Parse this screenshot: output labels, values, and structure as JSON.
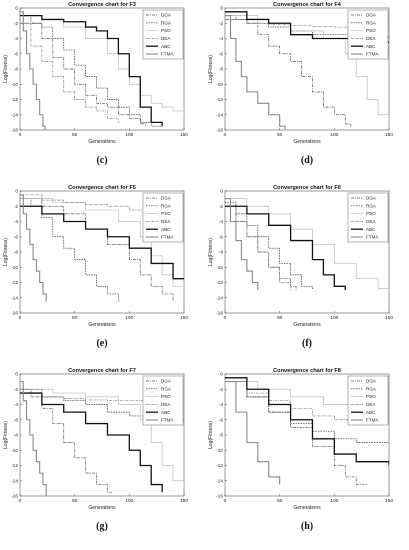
{
  "legend_labels": [
    "DGA",
    "RGA",
    "PSO",
    "DEA",
    "ABC",
    "FTMA"
  ],
  "series_styles": {
    "DGA": {
      "color": "#555555",
      "dash": "3 1 1 1",
      "width": 0.7
    },
    "RGA": {
      "color": "#333333",
      "dash": "1.5 1",
      "width": 0.7
    },
    "PSO": {
      "color": "#bbbbbb",
      "dash": "",
      "width": 0.7
    },
    "DEA": {
      "color": "#777777",
      "dash": "2.5 1 0.8 1",
      "width": 0.7
    },
    "ABC": {
      "color": "#111111",
      "dash": "",
      "width": 1.3
    },
    "FTMA": {
      "color": "#888888",
      "dash": "",
      "width": 1.1
    }
  },
  "chart_data": [
    {
      "type": "line",
      "title": "Convergence chart for F3",
      "caption": "(c)",
      "xlabel": "Generations",
      "ylabel": "Log(Fitness)",
      "xlim": [
        0,
        150
      ],
      "ylim": [
        -16,
        0
      ],
      "xticks": [
        0,
        50,
        100,
        150
      ],
      "yticks": [
        0,
        -2,
        -4,
        -6,
        -8,
        -10,
        -12,
        -14,
        -16
      ],
      "legend_position": "top-right",
      "series": [
        {
          "name": "DGA",
          "x": [
            0,
            20,
            30,
            40,
            50,
            60,
            70,
            80,
            90,
            100,
            110,
            115
          ],
          "y": [
            -2,
            -4,
            -6.5,
            -8,
            -10,
            -11.5,
            -12.5,
            -13,
            -14,
            -14.5,
            -15.2,
            -15.5
          ]
        },
        {
          "name": "RGA",
          "x": [
            0,
            10,
            20,
            30,
            40,
            50,
            60,
            70,
            80,
            90,
            100,
            110,
            120,
            130
          ],
          "y": [
            -1,
            -2,
            -2.5,
            -4,
            -5.5,
            -7.5,
            -9,
            -10.5,
            -12,
            -13,
            -14,
            -15,
            -15.5,
            -15.5
          ]
        },
        {
          "name": "PSO",
          "x": [
            0,
            20,
            40,
            60,
            80,
            90,
            100,
            110,
            120,
            130,
            140,
            150
          ],
          "y": [
            -1,
            -1.5,
            -2.5,
            -4,
            -6,
            -8,
            -10,
            -11.5,
            -12.5,
            -13,
            -13.5,
            -14
          ]
        },
        {
          "name": "DEA",
          "x": [
            0,
            10,
            20,
            30,
            40,
            50,
            60,
            70,
            80,
            90
          ],
          "y": [
            -2,
            -5,
            -7,
            -9,
            -11,
            -12,
            -13,
            -13.5,
            -14.5,
            -15
          ]
        },
        {
          "name": "ABC",
          "x": [
            0,
            20,
            40,
            60,
            70,
            80,
            90,
            100,
            110,
            120,
            130
          ],
          "y": [
            -1,
            -1.5,
            -1.8,
            -2.5,
            -3,
            -4,
            -6,
            -9,
            -13,
            -15,
            -15.5
          ]
        },
        {
          "name": "FTMA",
          "x": [
            0,
            3,
            6,
            9,
            12,
            15,
            18,
            21,
            23
          ],
          "y": [
            -0.5,
            -3,
            -6,
            -8,
            -10,
            -12,
            -14,
            -15.5,
            -16
          ]
        }
      ]
    },
    {
      "type": "line",
      "title": "Convergence chart for F4",
      "caption": "(d)",
      "xlabel": "Generations",
      "ylabel": "Log(Fitness)",
      "xlim": [
        0,
        150
      ],
      "ylim": [
        -16,
        0
      ],
      "xticks": [
        0,
        50,
        100,
        150
      ],
      "yticks": [
        0,
        -2,
        -4,
        -6,
        -8,
        -10,
        -12,
        -14,
        -16
      ],
      "legend_position": "top-right",
      "series": [
        {
          "name": "DGA",
          "x": [
            0,
            10,
            20,
            30,
            40,
            50,
            60,
            70,
            80,
            90,
            100,
            110,
            115
          ],
          "y": [
            -1,
            -1.5,
            -2,
            -3.5,
            -5,
            -6,
            -7,
            -9,
            -11,
            -13,
            -14,
            -15.2,
            -15.5
          ]
        },
        {
          "name": "RGA",
          "x": [
            0,
            20,
            40,
            60,
            80,
            100,
            120,
            140,
            150
          ],
          "y": [
            -1.5,
            -2,
            -2.5,
            -3,
            -3.5,
            -3.5,
            -3.8,
            -3.8,
            -4
          ]
        },
        {
          "name": "PSO",
          "x": [
            0,
            30,
            60,
            90,
            110,
            120,
            130,
            140,
            150
          ],
          "y": [
            -1,
            -2,
            -3,
            -4,
            -6,
            -9,
            -12,
            -14,
            -15
          ]
        },
        {
          "name": "DEA",
          "x": [
            0,
            20,
            40,
            60,
            80,
            100,
            120,
            150
          ],
          "y": [
            -1.5,
            -2,
            -2.2,
            -2.3,
            -2.4,
            -2.5,
            -2.5,
            -2.5
          ]
        },
        {
          "name": "ABC",
          "x": [
            0,
            20,
            40,
            60,
            80,
            100,
            120,
            150
          ],
          "y": [
            -0.5,
            -1.5,
            -2,
            -3.5,
            -4,
            -4,
            -4.5,
            -4.5
          ]
        },
        {
          "name": "FTMA",
          "x": [
            0,
            5,
            10,
            15,
            20,
            30,
            40,
            50,
            55
          ],
          "y": [
            -1,
            -4,
            -7,
            -9,
            -11,
            -12.5,
            -14,
            -15.5,
            -16
          ]
        }
      ]
    },
    {
      "type": "line",
      "title": "Convergence chart for F5",
      "caption": "(e)",
      "xlabel": "Generations",
      "ylabel": "Log(Fitness)",
      "xlim": [
        0,
        150
      ],
      "ylim": [
        -16,
        0
      ],
      "xticks": [
        0,
        50,
        100,
        150
      ],
      "yticks": [
        0,
        -2,
        -4,
        -6,
        -8,
        -10,
        -12,
        -14,
        -16
      ],
      "legend_position": "top-right",
      "series": [
        {
          "name": "DGA",
          "x": [
            0,
            20,
            40,
            60,
            80,
            100,
            110,
            120,
            130,
            140
          ],
          "y": [
            -1,
            -2,
            -3,
            -5,
            -7,
            -9,
            -11,
            -12.5,
            -13.5,
            -14.5
          ]
        },
        {
          "name": "RGA",
          "x": [
            0,
            10,
            20,
            30,
            40,
            50,
            60,
            70,
            80,
            90
          ],
          "y": [
            -1,
            -2,
            -3.5,
            -6,
            -7.5,
            -9,
            -11,
            -12.5,
            -13.5,
            -14.5
          ]
        },
        {
          "name": "PSO",
          "x": [
            0,
            30,
            60,
            90,
            110,
            120,
            130,
            140,
            150
          ],
          "y": [
            -1,
            -1.5,
            -2.5,
            -4,
            -6,
            -8.5,
            -11,
            -12.5,
            -13
          ]
        },
        {
          "name": "DEA",
          "x": [
            0,
            20,
            40,
            60,
            80,
            100,
            120,
            150
          ],
          "y": [
            -0.5,
            -1.2,
            -1.5,
            -1.8,
            -2,
            -2.5,
            -3,
            -3.5
          ]
        },
        {
          "name": "ABC",
          "x": [
            0,
            20,
            40,
            60,
            80,
            100,
            120,
            140,
            150
          ],
          "y": [
            -2,
            -3,
            -4,
            -5,
            -6,
            -7.5,
            -9.5,
            -11.5,
            -11.5
          ]
        },
        {
          "name": "FTMA",
          "x": [
            0,
            3,
            6,
            9,
            12,
            15,
            18,
            21,
            24
          ],
          "y": [
            -0.5,
            -3,
            -5,
            -7,
            -9,
            -10.5,
            -12,
            -13.5,
            -14.5
          ]
        }
      ]
    },
    {
      "type": "line",
      "title": "Convergence chart for F6",
      "caption": "(f)",
      "xlabel": "Generations",
      "ylabel": "Log(Fitness)",
      "xlim": [
        0,
        150
      ],
      "ylim": [
        -16,
        0
      ],
      "xticks": [
        0,
        50,
        100,
        150
      ],
      "yticks": [
        0,
        -2,
        -4,
        -6,
        -8,
        -10,
        -12,
        -14,
        -16
      ],
      "legend_position": "top-right",
      "series": [
        {
          "name": "DGA",
          "x": [
            0,
            10,
            20,
            30,
            40,
            50,
            60,
            65
          ],
          "y": [
            -2,
            -4,
            -6,
            -8,
            -10,
            -11.5,
            -12.5,
            -13
          ]
        },
        {
          "name": "RGA",
          "x": [
            0,
            10,
            20,
            30,
            40,
            50,
            60,
            70,
            80
          ],
          "y": [
            -1.5,
            -3,
            -4.5,
            -6,
            -7.5,
            -9.5,
            -11,
            -12.5,
            -13
          ]
        },
        {
          "name": "PSO",
          "x": [
            0,
            20,
            40,
            60,
            80,
            100,
            120,
            140,
            150
          ],
          "y": [
            -1,
            -2,
            -3,
            -5,
            -7,
            -9.5,
            -11.5,
            -12.8,
            -13
          ]
        },
        {
          "name": "DEA",
          "x": [
            0,
            10,
            20,
            30,
            40,
            50,
            60
          ],
          "y": [
            -2,
            -4,
            -6,
            -8,
            -10,
            -12,
            -13
          ]
        },
        {
          "name": "ABC",
          "x": [
            0,
            20,
            40,
            60,
            80,
            90,
            100,
            110
          ],
          "y": [
            -2,
            -3,
            -4.5,
            -6.5,
            -9,
            -11,
            -12.5,
            -13
          ]
        },
        {
          "name": "FTMA",
          "x": [
            0,
            5,
            10,
            15,
            20,
            25,
            30
          ],
          "y": [
            -1,
            -4,
            -6.5,
            -9,
            -10.5,
            -12,
            -13
          ]
        }
      ]
    },
    {
      "type": "line",
      "title": "Convergence chart for F7",
      "caption": "(g)",
      "xlabel": "Generations",
      "ylabel": "Log(Fitness)",
      "xlim": [
        0,
        150
      ],
      "ylim": [
        -16,
        0
      ],
      "xticks": [
        0,
        50,
        100,
        150
      ],
      "yticks": [
        0,
        -2,
        -4,
        -6,
        -8,
        -10,
        -12,
        -14,
        -16
      ],
      "legend_position": "top-right",
      "series": [
        {
          "name": "DGA",
          "x": [
            0,
            10,
            20,
            30,
            40,
            50,
            60,
            70,
            80,
            85
          ],
          "y": [
            -2,
            -3,
            -4.5,
            -6.5,
            -9,
            -11,
            -13,
            -14.5,
            -15.5,
            -15.5
          ]
        },
        {
          "name": "RGA",
          "x": [
            0,
            20,
            40,
            60,
            80,
            100,
            120,
            150
          ],
          "y": [
            -2.5,
            -3,
            -3.5,
            -4,
            -5,
            -5.5,
            -6,
            -6
          ]
        },
        {
          "name": "PSO",
          "x": [
            0,
            30,
            60,
            90,
            110,
            120,
            130,
            140,
            150
          ],
          "y": [
            -2,
            -2.5,
            -3,
            -4,
            -6,
            -9,
            -12,
            -14,
            -15
          ]
        },
        {
          "name": "DEA",
          "x": [
            0,
            20,
            40,
            60,
            80,
            100,
            120,
            150
          ],
          "y": [
            -2,
            -3,
            -3.2,
            -3.4,
            -3.5,
            -3.5,
            -3.5,
            -3.5
          ]
        },
        {
          "name": "ABC",
          "x": [
            0,
            20,
            40,
            60,
            80,
            100,
            110,
            120,
            130
          ],
          "y": [
            -2.5,
            -4,
            -5,
            -6.5,
            -8,
            -10,
            -12,
            -14.5,
            -15.5
          ]
        },
        {
          "name": "FTMA",
          "x": [
            0,
            3,
            6,
            9,
            12,
            15,
            18,
            21,
            24
          ],
          "y": [
            -1,
            -3.5,
            -6,
            -8,
            -10,
            -11.5,
            -13,
            -14.5,
            -16
          ]
        }
      ]
    },
    {
      "type": "line",
      "title": "Convergence chart for F8",
      "caption": "(h)",
      "xlabel": "Generations",
      "ylabel": "Log(Fitness)",
      "xlim": [
        0,
        150
      ],
      "ylim": [
        -16,
        0
      ],
      "xticks": [
        0,
        50,
        100,
        150
      ],
      "yticks": [
        0,
        -2,
        -4,
        -6,
        -8,
        -10,
        -12,
        -14,
        -16
      ],
      "legend_position": "top-right",
      "series": [
        {
          "name": "DGA",
          "x": [
            0,
            20,
            40,
            60,
            80,
            100,
            110,
            120,
            130
          ],
          "y": [
            -1,
            -3,
            -5,
            -7,
            -9.5,
            -12,
            -13.5,
            -14.5,
            -14.5
          ]
        },
        {
          "name": "RGA",
          "x": [
            0,
            20,
            40,
            60,
            80,
            100,
            120,
            150
          ],
          "y": [
            -1,
            -3,
            -5,
            -6.5,
            -7.5,
            -8.5,
            -9,
            -9
          ]
        },
        {
          "name": "PSO",
          "x": [
            0,
            30,
            60,
            90,
            120,
            150
          ],
          "y": [
            -1,
            -2,
            -3,
            -4,
            -6,
            -7
          ]
        },
        {
          "name": "DEA",
          "x": [
            0,
            20,
            40,
            60,
            80,
            100,
            120,
            150
          ],
          "y": [
            -1,
            -2.5,
            -3.5,
            -4.5,
            -5.5,
            -6,
            -6.5,
            -6.5
          ]
        },
        {
          "name": "ABC",
          "x": [
            0,
            20,
            40,
            60,
            80,
            100,
            120,
            150
          ],
          "y": [
            -0.5,
            -2,
            -4,
            -6,
            -8.5,
            -10.5,
            -11.5,
            -12
          ]
        },
        {
          "name": "FTMA",
          "x": [
            0,
            10,
            20,
            30,
            40,
            50
          ],
          "y": [
            -1,
            -5,
            -9,
            -11.5,
            -13.5,
            -14.5
          ]
        }
      ]
    }
  ]
}
